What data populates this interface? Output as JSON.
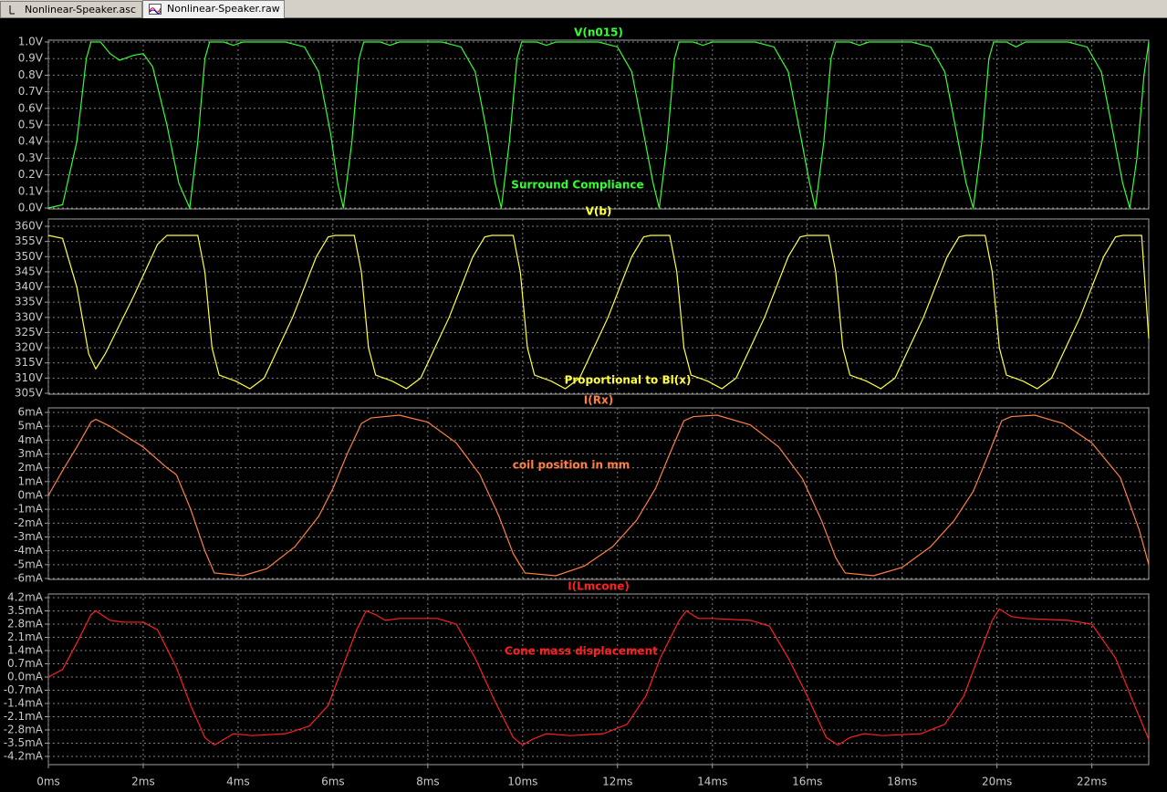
{
  "tabs": [
    "Nonlinear-Speaker.asc",
    "Nonlinear-Speaker.raw"
  ],
  "chart_data": [
    {
      "type": "line",
      "annotation": "Surround Compliance",
      "xlim": [
        0,
        23.2
      ],
      "ylim": [
        0,
        1.0
      ],
      "yticks": [
        {
          "value": 0,
          "label": "0.0V"
        },
        {
          "value": 0.1,
          "label": "0.1V"
        },
        {
          "value": 0.2,
          "label": "0.2V"
        },
        {
          "value": 0.3,
          "label": "0.3V"
        },
        {
          "value": 0.4,
          "label": "0.4V"
        },
        {
          "value": 0.5,
          "label": "0.5V"
        },
        {
          "value": 0.6,
          "label": "0.6V"
        },
        {
          "value": 0.7,
          "label": "0.7V"
        },
        {
          "value": 0.8,
          "label": "0.8V"
        },
        {
          "value": 0.9,
          "label": "0.9V"
        },
        {
          "value": 1.0,
          "label": "1.0V"
        }
      ],
      "x": [
        0,
        0.3,
        0.6,
        0.8,
        0.9,
        1.1,
        1.3,
        1.5,
        1.8,
        2.0,
        2.2,
        2.5,
        2.75,
        2.98,
        3.15,
        3.3,
        3.4,
        3.7,
        3.9,
        4.1,
        5.0,
        5.4,
        5.7,
        5.95,
        6.1,
        6.22,
        6.4,
        6.55,
        6.65,
        7.0,
        7.2,
        7.4,
        8.3,
        8.7,
        9.0,
        9.25,
        9.42,
        9.55,
        9.72,
        9.88,
        9.98,
        10.3,
        10.5,
        10.7,
        11.6,
        12.0,
        12.3,
        12.55,
        12.75,
        12.88,
        13.05,
        13.2,
        13.3,
        13.6,
        13.8,
        14.0,
        14.9,
        15.3,
        15.6,
        15.85,
        16.05,
        16.17,
        16.35,
        16.5,
        16.6,
        16.9,
        17.1,
        17.3,
        18.2,
        18.6,
        18.9,
        19.15,
        19.35,
        19.5,
        19.68,
        19.83,
        19.93,
        20.2,
        20.4,
        20.6,
        21.5,
        21.9,
        22.2,
        22.45,
        22.65,
        22.8,
        22.95,
        23.1,
        23.2
      ],
      "series": [
        {
          "name": "V(n015)",
          "color": "#33ff33",
          "values": [
            0,
            0.02,
            0.4,
            0.9,
            1.0,
            1.0,
            0.93,
            0.89,
            0.92,
            0.93,
            0.85,
            0.5,
            0.15,
            0,
            0.4,
            0.9,
            1.0,
            1.0,
            0.98,
            1.0,
            1.0,
            0.97,
            0.82,
            0.45,
            0.15,
            0,
            0.4,
            0.9,
            1.0,
            1.0,
            0.98,
            1.0,
            1.0,
            0.97,
            0.82,
            0.45,
            0.15,
            0,
            0.4,
            0.9,
            1.0,
            1.0,
            0.98,
            1.0,
            1.0,
            0.97,
            0.82,
            0.45,
            0.15,
            0,
            0.4,
            0.9,
            1.0,
            1.0,
            0.98,
            1.0,
            1.0,
            0.97,
            0.82,
            0.45,
            0.15,
            0,
            0.4,
            0.9,
            1.0,
            1.0,
            0.98,
            1.0,
            1.0,
            0.97,
            0.82,
            0.45,
            0.15,
            0,
            0.4,
            0.9,
            1.0,
            1.0,
            0.97,
            1.0,
            1.0,
            0.97,
            0.82,
            0.45,
            0.15,
            0,
            0.3,
            0.8,
            1.0
          ]
        }
      ]
    },
    {
      "type": "line",
      "annotation": "Proportional to Bl(x)",
      "xlim": [
        0,
        23.2
      ],
      "ylim": [
        305,
        360
      ],
      "yticks": [
        {
          "value": 305,
          "label": "305V"
        },
        {
          "value": 310,
          "label": "310V"
        },
        {
          "value": 315,
          "label": "315V"
        },
        {
          "value": 320,
          "label": "320V"
        },
        {
          "value": 325,
          "label": "325V"
        },
        {
          "value": 330,
          "label": "330V"
        },
        {
          "value": 335,
          "label": "335V"
        },
        {
          "value": 340,
          "label": "340V"
        },
        {
          "value": 345,
          "label": "345V"
        },
        {
          "value": 350,
          "label": "350V"
        },
        {
          "value": 355,
          "label": "355V"
        },
        {
          "value": 360,
          "label": "360V"
        }
      ],
      "x": [
        0,
        0.3,
        0.6,
        0.85,
        1.0,
        1.2,
        1.8,
        2.3,
        2.5,
        3.15,
        3.3,
        3.45,
        3.6,
        3.95,
        4.25,
        4.55,
        5.15,
        5.65,
        5.9,
        6.05,
        6.45,
        6.6,
        6.75,
        6.9,
        7.25,
        7.55,
        7.85,
        8.45,
        8.95,
        9.2,
        9.35,
        9.8,
        9.95,
        10.1,
        10.25,
        10.6,
        10.9,
        11.2,
        11.8,
        12.3,
        12.55,
        12.7,
        13.1,
        13.25,
        13.4,
        13.55,
        13.9,
        14.2,
        14.5,
        15.1,
        15.6,
        15.85,
        16.0,
        16.45,
        16.6,
        16.75,
        16.9,
        17.25,
        17.55,
        17.85,
        18.45,
        18.95,
        19.2,
        19.35,
        19.75,
        19.9,
        20.05,
        20.2,
        20.55,
        20.85,
        21.15,
        21.75,
        22.25,
        22.5,
        22.65,
        23.05,
        23.2
      ],
      "series": [
        {
          "name": "V(b)",
          "color": "#ffff40",
          "values": [
            357,
            356,
            340,
            318,
            313,
            318,
            337,
            354,
            357,
            357,
            345,
            320,
            311,
            309,
            306.5,
            310,
            330,
            350,
            356.5,
            357,
            357,
            345,
            320,
            311,
            309,
            306.5,
            310,
            330,
            350,
            356.5,
            357,
            357,
            345,
            320,
            311,
            309,
            306.5,
            310,
            330,
            350,
            356.5,
            357,
            357,
            345,
            320,
            311,
            309,
            306.5,
            310,
            330,
            350,
            356.5,
            357,
            357,
            345,
            320,
            311,
            309,
            306.5,
            310,
            330,
            350,
            356.5,
            357,
            357,
            345,
            320,
            311,
            309,
            306.5,
            310,
            330,
            350,
            356.5,
            357,
            357,
            323
          ]
        }
      ]
    },
    {
      "type": "line",
      "annotation": "coil position in mm",
      "xlim": [
        0,
        23.2
      ],
      "ylim": [
        -6,
        6
      ],
      "yticks": [
        {
          "value": -6,
          "label": "-6mA"
        },
        {
          "value": -5,
          "label": "-5mA"
        },
        {
          "value": -4,
          "label": "-4mA"
        },
        {
          "value": -3,
          "label": "-3mA"
        },
        {
          "value": -2,
          "label": "-2mA"
        },
        {
          "value": -1,
          "label": "-1mA"
        },
        {
          "value": 0,
          "label": "0mA"
        },
        {
          "value": 1,
          "label": "1mA"
        },
        {
          "value": 2,
          "label": "2mA"
        },
        {
          "value": 3,
          "label": "3mA"
        },
        {
          "value": 4,
          "label": "4mA"
        },
        {
          "value": 5,
          "label": "5mA"
        },
        {
          "value": 6,
          "label": "6mA"
        }
      ],
      "x": [
        0,
        0.3,
        0.6,
        0.9,
        1.0,
        1.3,
        2.0,
        2.5,
        2.7,
        3.0,
        3.3,
        3.5,
        4.1,
        4.6,
        5.2,
        5.7,
        6.0,
        6.3,
        6.6,
        6.8,
        7.4,
        8.0,
        8.6,
        9.1,
        9.5,
        9.8,
        10.05,
        10.7,
        11.3,
        11.9,
        12.4,
        12.8,
        13.1,
        13.4,
        13.6,
        14.1,
        14.8,
        15.4,
        15.9,
        16.3,
        16.6,
        16.8,
        17.4,
        18.0,
        18.6,
        19.1,
        19.5,
        19.8,
        20.1,
        20.3,
        20.8,
        21.4,
        22.0,
        22.6,
        23.0,
        23.2
      ],
      "series": [
        {
          "name": "I(Rx)",
          "color": "#ff8040",
          "values": [
            0,
            1.8,
            3.5,
            5.3,
            5.5,
            5.0,
            3.5,
            2.0,
            1.5,
            -1.0,
            -4.0,
            -5.6,
            -5.8,
            -5.3,
            -3.7,
            -1.5,
            0.5,
            3.0,
            5.2,
            5.6,
            5.8,
            5.3,
            3.8,
            1.5,
            -1.5,
            -4.2,
            -5.6,
            -5.8,
            -5.1,
            -3.7,
            -1.8,
            0.5,
            3.0,
            5.4,
            5.7,
            5.8,
            5.1,
            3.5,
            1.2,
            -1.8,
            -4.5,
            -5.6,
            -5.8,
            -5.2,
            -3.7,
            -1.8,
            0.3,
            2.8,
            5.4,
            5.7,
            5.8,
            5.2,
            3.8,
            1.3,
            -2.5,
            -5.0
          ]
        }
      ]
    },
    {
      "type": "line",
      "annotation": "Cone mass displacement",
      "xlim": [
        0,
        23.2
      ],
      "ylim": [
        -4.2,
        4.2
      ],
      "yticks": [
        {
          "value": -4.2,
          "label": "-4.2mA"
        },
        {
          "value": -3.5,
          "label": "-3.5mA"
        },
        {
          "value": -2.8,
          "label": "-2.8mA"
        },
        {
          "value": -2.1,
          "label": "-2.1mA"
        },
        {
          "value": -1.4,
          "label": "-1.4mA"
        },
        {
          "value": -0.7,
          "label": "-0.7mA"
        },
        {
          "value": 0,
          "label": "0.0mA"
        },
        {
          "value": 0.7,
          "label": "0.7mA"
        },
        {
          "value": 1.4,
          "label": "1.4mA"
        },
        {
          "value": 2.1,
          "label": "2.1mA"
        },
        {
          "value": 2.8,
          "label": "2.8mA"
        },
        {
          "value": 3.5,
          "label": "3.5mA"
        },
        {
          "value": 4.2,
          "label": "4.2mA"
        }
      ],
      "xticks": [
        {
          "value": 0,
          "label": "0ms"
        },
        {
          "value": 2,
          "label": "2ms"
        },
        {
          "value": 4,
          "label": "4ms"
        },
        {
          "value": 6,
          "label": "6ms"
        },
        {
          "value": 8,
          "label": "8ms"
        },
        {
          "value": 10,
          "label": "10ms"
        },
        {
          "value": 12,
          "label": "12ms"
        },
        {
          "value": 14,
          "label": "14ms"
        },
        {
          "value": 16,
          "label": "16ms"
        },
        {
          "value": 18,
          "label": "18ms"
        },
        {
          "value": 20,
          "label": "20ms"
        },
        {
          "value": 22,
          "label": "22ms"
        }
      ],
      "x": [
        0,
        0.3,
        0.6,
        0.9,
        1.0,
        1.3,
        1.6,
        2.0,
        2.3,
        2.7,
        3.0,
        3.3,
        3.5,
        3.7,
        3.9,
        4.3,
        5.0,
        5.5,
        5.9,
        6.2,
        6.5,
        6.7,
        6.9,
        7.1,
        7.4,
        8.2,
        8.6,
        9.0,
        9.4,
        9.8,
        10.0,
        10.2,
        10.5,
        11.0,
        11.7,
        12.2,
        12.6,
        12.9,
        13.3,
        13.45,
        13.7,
        14.0,
        14.8,
        15.2,
        15.6,
        16.0,
        16.4,
        16.65,
        16.9,
        17.2,
        17.6,
        18.4,
        18.9,
        19.3,
        19.6,
        19.9,
        20.05,
        20.3,
        20.6,
        21.5,
        22.0,
        22.5,
        22.9,
        23.2
      ],
      "series": [
        {
          "name": "I(Lmcone)",
          "color": "#ff2020",
          "values": [
            0,
            0.4,
            1.8,
            3.3,
            3.5,
            3.0,
            2.9,
            2.9,
            2.5,
            0.5,
            -1.5,
            -3.2,
            -3.6,
            -3.3,
            -3.0,
            -3.1,
            -3.0,
            -2.6,
            -1.5,
            0.5,
            2.5,
            3.5,
            3.3,
            3.0,
            3.1,
            3.1,
            2.8,
            1.0,
            -1.2,
            -3.2,
            -3.6,
            -3.3,
            -3.0,
            -3.1,
            -3.0,
            -2.5,
            -1.0,
            1.0,
            3.0,
            3.5,
            3.1,
            3.1,
            3.0,
            2.7,
            1.0,
            -1.0,
            -3.2,
            -3.6,
            -3.2,
            -3.0,
            -3.1,
            -3.0,
            -2.5,
            -1.0,
            1.0,
            3.0,
            3.6,
            3.2,
            3.1,
            3.0,
            2.8,
            1.0,
            -1.5,
            -3.3
          ]
        }
      ]
    }
  ]
}
